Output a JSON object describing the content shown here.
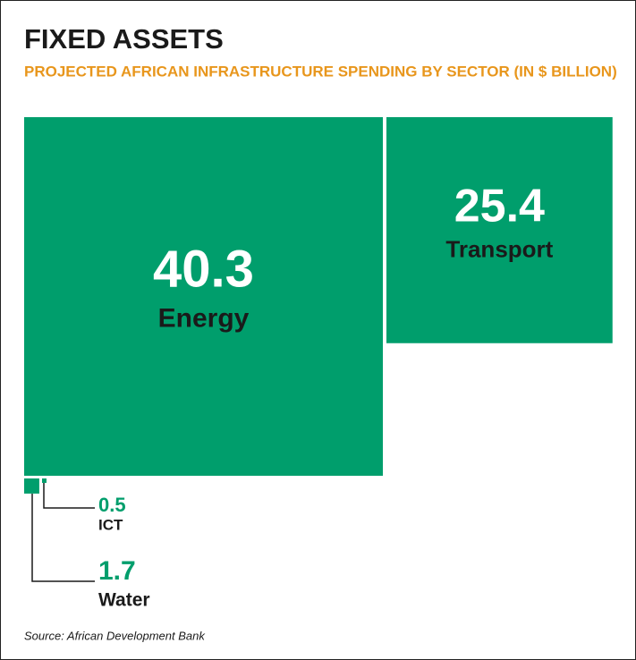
{
  "chart_data": {
    "type": "square",
    "title": "FIXED ASSETS",
    "subtitle": "PROJECTED AFRICAN INFRASTRUCTURE SPENDING BY SECTOR (IN $ BILLION)",
    "categories": [
      "Energy",
      "Transport",
      "ICT",
      "Water"
    ],
    "values": [
      40.3,
      25.4,
      0.5,
      1.7
    ],
    "color": "#009e6c",
    "source": "Source: African Development Bank"
  }
}
